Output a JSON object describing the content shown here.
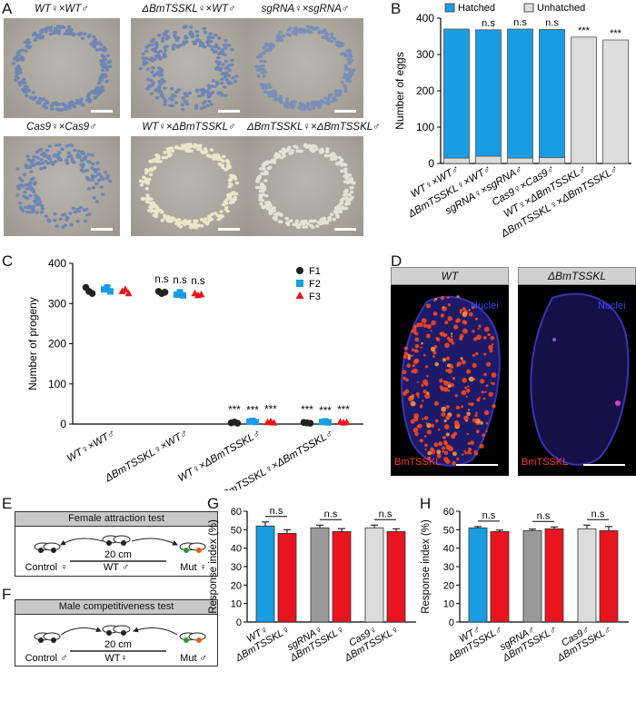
{
  "panels": {
    "A": "A",
    "B": "B",
    "C": "C",
    "D": "D",
    "E": "E",
    "F": "F",
    "G": "G",
    "H": "H"
  },
  "panelA": {
    "captions": [
      "WT♀×WT♂",
      "ΔBmTSSKL♀×WT♂",
      "sgRNA♀×sgRNA♂",
      "Cas9♀×Cas9♂",
      "WT♀×ΔBmTSSKL♂",
      "ΔBmTSSKL♀×ΔBmTSSKL♂"
    ],
    "egg_colors": [
      "#6f86b5",
      "#6f86b5",
      "#7a8fb8",
      "#6f86b5",
      "#e9e6c9",
      "#e4e2d4"
    ]
  },
  "panelD": {
    "labels": [
      "WT",
      "ΔBmTSSKL"
    ],
    "nuclei": "Nuclei",
    "marker": "BmTSSKL"
  },
  "panelE": {
    "title": "Female attraction test",
    "left": "Control ♀",
    "center": "WT ♂",
    "right": "Mut ♀",
    "distance": "20 cm"
  },
  "panelF": {
    "title": "Male competitiveness test",
    "left": "Control ♂",
    "center": "WT♀",
    "right": "Mut ♂",
    "distance": "20 cm"
  },
  "colors": {
    "hatched": "#1a9ce3",
    "unhatched": "#dcdcdc",
    "red": "#e8141e",
    "black": "#222222",
    "gray": "#9a9a9a",
    "lightgray": "#dcdcdc"
  },
  "chart_data": [
    {
      "id": "B",
      "type": "bar",
      "ylabel": "Number of eggs",
      "ylim": [
        0,
        400
      ],
      "yticks": [
        0,
        100,
        200,
        300,
        400
      ],
      "categories": [
        "WT♀×WT♂",
        "ΔBmTSSKL♀×WT♂",
        "sgRNA♀×sgRNA♂",
        "Cas9♀×Cas9♂",
        "WT♀×ΔBmTSSKL♂",
        "ΔBmTSSKL♀×ΔBmTSSKL♂"
      ],
      "series": [
        {
          "name": "Hatched",
          "values": [
            355,
            348,
            355,
            353,
            0,
            0
          ]
        },
        {
          "name": "Unhatched",
          "values": [
            15,
            20,
            15,
            16,
            348,
            340
          ]
        }
      ],
      "annotations": [
        "",
        "n.s",
        "n.s",
        "n.s",
        "***",
        "***"
      ],
      "legend": "top"
    },
    {
      "id": "C",
      "type": "scatter",
      "ylabel": "Number of progeny",
      "ylim": [
        0,
        400
      ],
      "yticks": [
        0,
        100,
        200,
        300,
        400
      ],
      "categories": [
        "WT♀×WT♂",
        "ΔBmTSSKL♀×WT♂",
        "WT♀×ΔBmTSSKL♂",
        "ΔBmTSSKL♀×ΔBmTSSKL♂"
      ],
      "series": [
        {
          "name": "F1",
          "values": [
            [
              340,
              330,
              325
            ],
            [
              330,
              325,
              328
            ],
            [
              3,
              5,
              2
            ],
            [
              4,
              3,
              2
            ]
          ]
        },
        {
          "name": "F2",
          "values": [
            [
              335,
              340,
              330
            ],
            [
              322,
              328,
              320
            ],
            [
              6,
              8,
              5
            ],
            [
              5,
              7,
              4
            ]
          ]
        },
        {
          "name": "F3",
          "values": [
            [
              330,
              335,
              325
            ],
            [
              325,
              320,
              322
            ],
            [
              4,
              6,
              3
            ],
            [
              5,
              3,
              4
            ]
          ]
        }
      ],
      "annotations": [
        [
          "",
          "",
          ""
        ],
        [
          "n.s",
          "n.s",
          "n.s"
        ],
        [
          "***",
          "***",
          "***"
        ],
        [
          "***",
          "***",
          "***"
        ]
      ],
      "legend": "top-right"
    },
    {
      "id": "G",
      "type": "bar",
      "ylabel": "Response index (%)",
      "ylim": [
        0,
        60
      ],
      "yticks": [
        0,
        10,
        20,
        30,
        40,
        50,
        60
      ],
      "categories": [
        "WT♀",
        "ΔBmTSSKL♀",
        "sgRNA♀",
        "ΔBmTSSKL♀",
        "Cas9♀",
        "ΔBmTSSKL♀"
      ],
      "values": [
        52,
        48,
        51,
        49,
        51,
        49
      ],
      "errors": [
        2.2,
        2.0,
        1.5,
        1.6,
        1.5,
        1.5
      ],
      "annotations": [
        "n.s",
        "n.s",
        "n.s"
      ]
    },
    {
      "id": "H",
      "type": "bar",
      "ylabel": "Response index (%)",
      "ylim": [
        0,
        60
      ],
      "yticks": [
        0,
        10,
        20,
        30,
        40,
        50,
        60
      ],
      "categories": [
        "WT♂",
        "ΔBmTSSKL♂",
        "sgRNA♂",
        "ΔBmTSSKL♂",
        "Cas9♂",
        "ΔBmTSSKL♂"
      ],
      "values": [
        51,
        49,
        49.5,
        50.5,
        50.5,
        49.5
      ],
      "errors": [
        0.7,
        0.8,
        0.8,
        1.0,
        2.0,
        2.2
      ],
      "annotations": [
        "n.s",
        "n.s",
        "n.s"
      ]
    }
  ]
}
